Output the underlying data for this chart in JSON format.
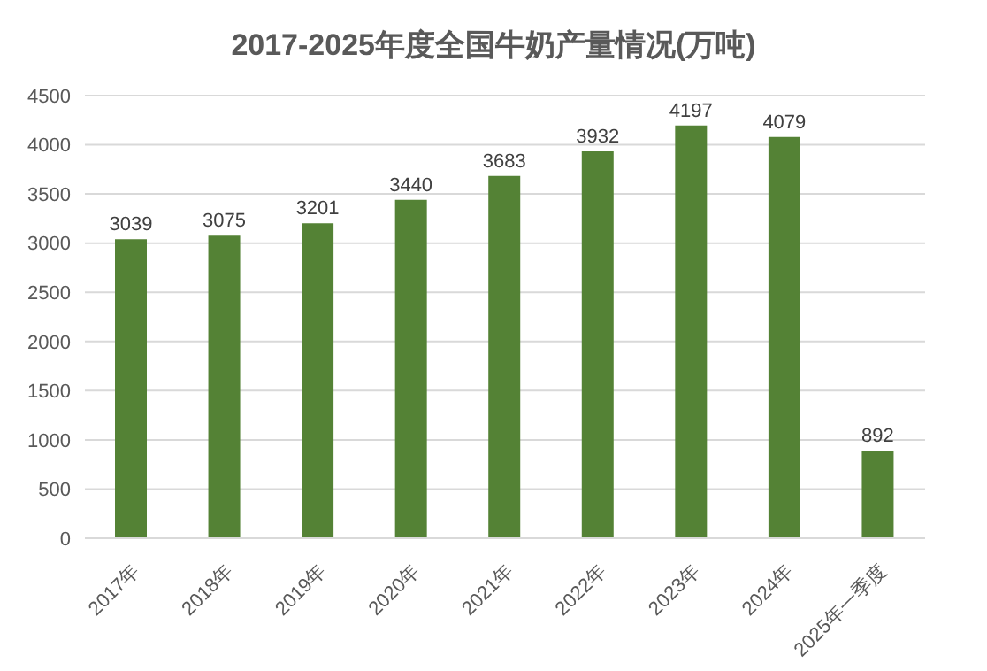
{
  "chart_data": {
    "type": "bar",
    "title": "2017-2025年度全国牛奶产量情况(万吨)",
    "categories": [
      "2017年",
      "2018年",
      "2019年",
      "2020年",
      "2021年",
      "2022年",
      "2023年",
      "2024年",
      "2025年一季度"
    ],
    "values": [
      3039,
      3075,
      3201,
      3440,
      3683,
      3932,
      4197,
      4079,
      892
    ],
    "color": "#548235",
    "ylim": [
      0,
      4500
    ],
    "yticks": [
      0,
      500,
      1000,
      1500,
      2000,
      2500,
      3000,
      3500,
      4000,
      4500
    ],
    "grid": "y",
    "data_labels": true
  }
}
